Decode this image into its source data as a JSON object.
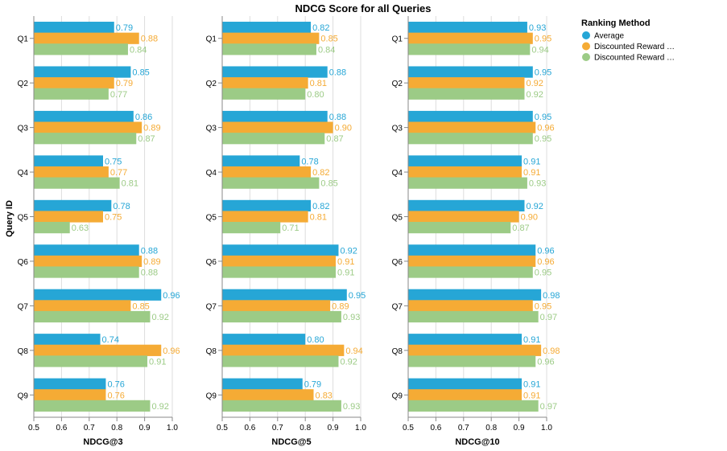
{
  "chart_data": {
    "type": "bar",
    "orientation": "horizontal",
    "title": "NDCG Score for all Queries",
    "ylabel": "Query ID",
    "categories": [
      "Q1",
      "Q2",
      "Q3",
      "Q4",
      "Q5",
      "Q6",
      "Q7",
      "Q8",
      "Q9"
    ],
    "xlim": [
      0.5,
      1.0
    ],
    "xticks": [
      "0.5",
      "0.6",
      "0.7",
      "0.8",
      "0.9",
      "1.0"
    ],
    "grid": true,
    "legend": {
      "title": "Ranking Method",
      "placement": "right",
      "entries": [
        "Average",
        "Discounted Reward …",
        "Discounted Reward …"
      ],
      "colors": [
        "#26a6d6",
        "#f5ab35",
        "#9ccb86"
      ]
    },
    "panels": [
      {
        "xlabel": "NDCG@3",
        "series": [
          {
            "name": "Average",
            "values": [
              0.79,
              0.85,
              0.86,
              0.75,
              0.78,
              0.88,
              0.96,
              0.74,
              0.76
            ]
          },
          {
            "name": "Discounted Reward …",
            "values": [
              0.88,
              0.79,
              0.89,
              0.77,
              0.75,
              0.89,
              0.85,
              0.96,
              0.76
            ]
          },
          {
            "name": "Discounted Reward …",
            "values": [
              0.84,
              0.77,
              0.87,
              0.81,
              0.63,
              0.88,
              0.92,
              0.91,
              0.92
            ]
          }
        ],
        "labels": [
          [
            "0.79",
            "0.85",
            "0.86",
            "0.75",
            "0.78",
            "0.88",
            "0.96",
            "0.74",
            "0.76"
          ],
          [
            "0.88",
            "0.79",
            "0.89",
            "0.77",
            "0.75",
            "0.89",
            "0.85",
            "0.96",
            "0.76"
          ],
          [
            "0.84",
            "0.77",
            "0.87",
            "0.81",
            "0.63",
            "0.88",
            "0.92",
            "0.91",
            "0.92"
          ]
        ]
      },
      {
        "xlabel": "NDCG@5",
        "series": [
          {
            "name": "Average",
            "values": [
              0.82,
              0.88,
              0.88,
              0.78,
              0.82,
              0.92,
              0.95,
              0.8,
              0.79
            ]
          },
          {
            "name": "Discounted Reward …",
            "values": [
              0.85,
              0.81,
              0.9,
              0.82,
              0.81,
              0.91,
              0.89,
              0.94,
              0.83
            ]
          },
          {
            "name": "Discounted Reward …",
            "values": [
              0.84,
              0.8,
              0.87,
              0.85,
              0.71,
              0.91,
              0.93,
              0.92,
              0.93
            ]
          }
        ],
        "labels": [
          [
            "0.82",
            "0.88",
            "0.88",
            "0.78",
            "0.82",
            "0.92",
            "0.95",
            "0.80",
            "0.79"
          ],
          [
            "0.85",
            "0.81",
            "0.90",
            "0.82",
            "0.81",
            "0.91",
            "0.89",
            "0.94",
            "0.83"
          ],
          [
            "0.84",
            "0.80",
            "0.87",
            "0.85",
            "0.71",
            "0.91",
            "0.93",
            "0.92",
            "0.93"
          ]
        ]
      },
      {
        "xlabel": "NDCG@10",
        "series": [
          {
            "name": "Average",
            "values": [
              0.93,
              0.95,
              0.95,
              0.91,
              0.92,
              0.96,
              0.98,
              0.91,
              0.91
            ]
          },
          {
            "name": "Discounted Reward …",
            "values": [
              0.95,
              0.92,
              0.96,
              0.91,
              0.9,
              0.96,
              0.95,
              0.98,
              0.91
            ]
          },
          {
            "name": "Discounted Reward …",
            "values": [
              0.94,
              0.92,
              0.95,
              0.93,
              0.87,
              0.95,
              0.97,
              0.96,
              0.97
            ]
          }
        ],
        "labels": [
          [
            "0.93",
            "0.95",
            "0.95",
            "0.91",
            "0.92",
            "0.96",
            "0.98",
            "0.91",
            "0.91"
          ],
          [
            "0.95",
            "0.92",
            "0.96",
            "0.91",
            "0.90",
            "0.96",
            "0.95",
            "0.98",
            "0.91"
          ],
          [
            "0.94",
            "0.92",
            "0.95",
            "0.93",
            "0.87",
            "0.95",
            "0.97",
            "0.96",
            "0.97"
          ]
        ]
      }
    ]
  }
}
